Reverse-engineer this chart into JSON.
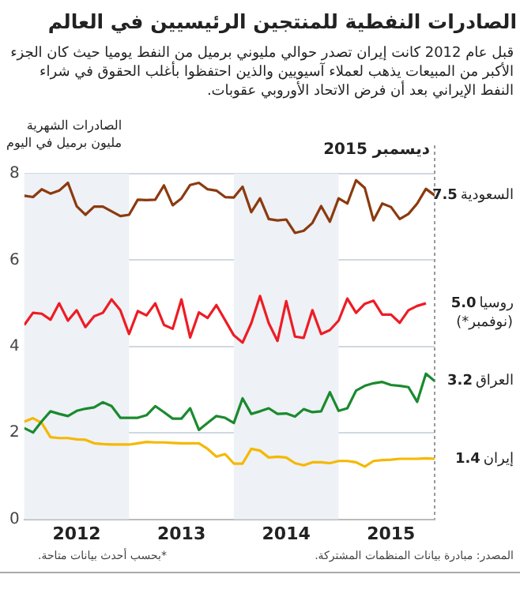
{
  "chart_data": {
    "type": "line",
    "title": "الصادرات النفطية للمنتجين الرئيسيين في العالم",
    "subtitle": "قبل عام 2012 كانت إيران تصدر حوالي مليوني برميل من النفط يوميا حيث كان الجزء الأكبر من المبيعات يذهب لعملاء آسيويين والذين احتفظوا بأغلب الحقوق في شراء النفط الإيراني بعد أن فرض الاتحاد الأوروبي عقوبات.",
    "ylabel": "الصادرات الشهرية\nمليون برميل في اليوم",
    "x": [
      "2012-01",
      "2012-02",
      "2012-03",
      "2012-04",
      "2012-05",
      "2012-06",
      "2012-07",
      "2012-08",
      "2012-09",
      "2012-10",
      "2012-11",
      "2012-12",
      "2013-01",
      "2013-02",
      "2013-03",
      "2013-04",
      "2013-05",
      "2013-06",
      "2013-07",
      "2013-08",
      "2013-09",
      "2013-10",
      "2013-11",
      "2013-12",
      "2014-01",
      "2014-02",
      "2014-03",
      "2014-04",
      "2014-05",
      "2014-06",
      "2014-07",
      "2014-08",
      "2014-09",
      "2014-10",
      "2014-11",
      "2014-12",
      "2015-01",
      "2015-02",
      "2015-03",
      "2015-04",
      "2015-05",
      "2015-06",
      "2015-07",
      "2015-08",
      "2015-09",
      "2015-10",
      "2015-11",
      "2015-12"
    ],
    "series": [
      {
        "name": "السعودية",
        "color": "#8b3a0f",
        "values": [
          7.49,
          7.46,
          7.64,
          7.54,
          7.61,
          7.79,
          7.25,
          7.05,
          7.24,
          7.24,
          7.13,
          7.02,
          7.05,
          7.4,
          7.39,
          7.4,
          7.73,
          7.27,
          7.43,
          7.74,
          7.79,
          7.64,
          7.61,
          7.46,
          7.45,
          7.7,
          7.11,
          7.43,
          6.95,
          6.92,
          6.94,
          6.63,
          6.68,
          6.86,
          7.25,
          6.89,
          7.43,
          7.31,
          7.85,
          7.67,
          6.92,
          7.31,
          7.23,
          6.95,
          7.07,
          7.31,
          7.65,
          7.5
        ],
        "value_labels": [
          null,
          null,
          null,
          null,
          null,
          null,
          null,
          null,
          null,
          null,
          null,
          null,
          null,
          null,
          null,
          null,
          null,
          null,
          null,
          null,
          null,
          null,
          null,
          null,
          null,
          null,
          null,
          null,
          null,
          null,
          null,
          null,
          null,
          null,
          null,
          null,
          null,
          null,
          null,
          null,
          null,
          null,
          null,
          null,
          null,
          null,
          null,
          "7.5"
        ]
      },
      {
        "name": "روسيا",
        "color": "#ee1c25",
        "values": [
          4.5,
          4.78,
          4.76,
          4.62,
          5.0,
          4.6,
          4.84,
          4.45,
          4.7,
          4.78,
          5.09,
          4.84,
          4.29,
          4.82,
          4.72,
          5.0,
          4.5,
          4.41,
          5.09,
          4.21,
          4.79,
          4.66,
          4.96,
          null,
          4.26,
          4.09,
          4.54,
          5.17,
          4.54,
          4.13,
          5.05,
          4.23,
          4.2,
          4.84,
          4.29,
          4.38,
          4.6,
          5.11,
          4.78,
          4.99,
          5.06,
          4.74,
          4.74,
          4.55,
          4.84,
          4.94,
          5.0,
          null
        ],
        "value_labels": [
          null,
          null,
          null,
          null,
          null,
          null,
          null,
          null,
          null,
          null,
          null,
          null,
          null,
          null,
          null,
          null,
          null,
          null,
          null,
          null,
          null,
          null,
          null,
          null,
          null,
          null,
          null,
          null,
          null,
          null,
          null,
          null,
          null,
          null,
          null,
          null,
          null,
          null,
          null,
          null,
          null,
          null,
          null,
          null,
          null,
          null,
          "5.0",
          null
        ]
      },
      {
        "name": "العراق",
        "color": "#1a8a2e",
        "values": [
          2.11,
          2.01,
          2.27,
          2.5,
          2.44,
          2.39,
          2.51,
          2.56,
          2.59,
          2.71,
          2.62,
          2.35,
          2.35,
          2.35,
          2.41,
          2.62,
          2.48,
          2.33,
          2.33,
          2.57,
          2.07,
          2.23,
          2.39,
          2.35,
          2.23,
          2.8,
          2.44,
          2.5,
          2.57,
          2.44,
          2.45,
          2.38,
          2.55,
          2.48,
          2.5,
          2.94,
          2.51,
          2.57,
          2.98,
          3.09,
          3.15,
          3.18,
          3.11,
          3.09,
          3.06,
          2.72,
          3.37,
          3.2
        ],
        "value_labels": [
          null,
          null,
          null,
          null,
          null,
          null,
          null,
          null,
          null,
          null,
          null,
          null,
          null,
          null,
          null,
          null,
          null,
          null,
          null,
          null,
          null,
          null,
          null,
          null,
          null,
          null,
          null,
          null,
          null,
          null,
          null,
          null,
          null,
          null,
          null,
          null,
          null,
          null,
          null,
          null,
          null,
          null,
          null,
          null,
          null,
          null,
          null,
          "3.2"
        ]
      },
      {
        "name": "إيران",
        "color": "#f5b800",
        "values": [
          2.26,
          2.34,
          2.23,
          1.9,
          1.88,
          1.88,
          1.85,
          1.84,
          1.76,
          1.74,
          1.73,
          1.73,
          1.73,
          1.76,
          1.79,
          1.78,
          1.78,
          1.77,
          1.76,
          1.76,
          1.76,
          1.63,
          1.45,
          1.51,
          1.29,
          1.29,
          1.63,
          1.59,
          1.43,
          1.45,
          1.43,
          1.3,
          1.25,
          1.32,
          1.32,
          1.3,
          1.35,
          1.35,
          1.32,
          1.22,
          1.35,
          1.37,
          1.38,
          1.4,
          1.4,
          1.4,
          1.41,
          1.4
        ],
        "value_labels": [
          null,
          null,
          null,
          null,
          null,
          null,
          null,
          null,
          null,
          null,
          null,
          null,
          null,
          null,
          null,
          null,
          null,
          null,
          null,
          null,
          null,
          null,
          null,
          null,
          null,
          null,
          null,
          null,
          null,
          null,
          null,
          null,
          null,
          null,
          null,
          null,
          null,
          null,
          null,
          null,
          null,
          null,
          null,
          null,
          null,
          null,
          null,
          "1.4"
        ]
      }
    ],
    "xlim": [
      "2012-01",
      "2015-12"
    ],
    "xticks": [
      {
        "value": "2012-07",
        "label": "2012"
      },
      {
        "value": "2013-07",
        "label": "2013"
      },
      {
        "value": "2014-07",
        "label": "2014"
      },
      {
        "value": "2015-07",
        "label": "2015"
      }
    ],
    "ylim": [
      0,
      8
    ],
    "yticks": [
      0,
      2,
      4,
      6,
      8
    ],
    "grid": "y",
    "legend": false,
    "marker": "none",
    "line_style": "solid",
    "bands": [
      {
        "axis": "x",
        "from": "2012-01",
        "to": "2013-01",
        "color": "#eef1f5"
      },
      {
        "axis": "x",
        "from": "2014-01",
        "to": "2015-01",
        "color": "#eef1f5"
      }
    ],
    "ref_lines": [
      {
        "axis": "x",
        "value": "2015-12",
        "label": "ديسمبر 2015",
        "color": "#999999",
        "line_style": "dotted"
      }
    ],
    "annotations": [
      {
        "text": "(نوفمبر*)",
        "x": "2015-11",
        "y": 5.0
      },
      "المصدر: مبادرة بيانات المنظمات المشتركة.",
      "*بحسب أحدث بيانات متاحة."
    ]
  }
}
